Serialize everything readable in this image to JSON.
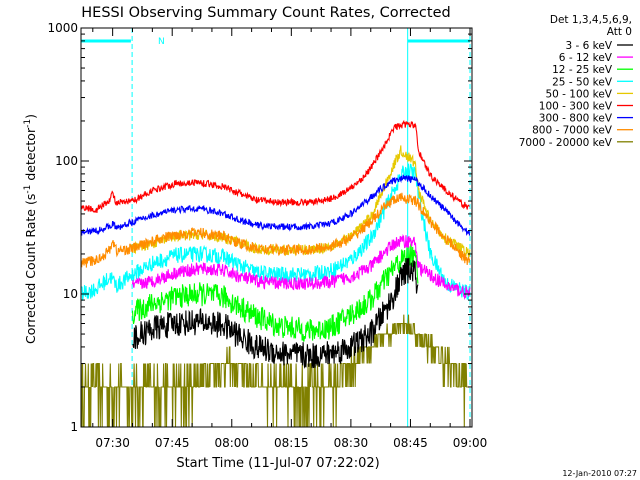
{
  "chart_data": {
    "type": "line",
    "title": "HESSI Observing Summary Count Rates, Corrected",
    "xlabel": "Start Time (11-Jul-07 07:22:02)",
    "ylabel_main": "Corrected Count Rate (s",
    "ylabel_sup1": "-1",
    "ylabel_mid": " detector",
    "ylabel_sup2": "-1",
    "ylabel_end": ")",
    "y_scale": "log",
    "ylim": [
      1,
      1000
    ],
    "xlim_minutes": [
      442.03,
      540.5
    ],
    "x_ticks": [
      {
        "label": "07:30",
        "min": 450
      },
      {
        "label": "07:45",
        "min": 465
      },
      {
        "label": "08:00",
        "min": 480
      },
      {
        "label": "08:15",
        "min": 495
      },
      {
        "label": "08:30",
        "min": 510
      },
      {
        "label": "08:45",
        "min": 525
      },
      {
        "label": "09:00",
        "min": 540
      }
    ],
    "y_ticks": [
      {
        "label": "1",
        "value": 1
      },
      {
        "label": "10",
        "value": 10
      },
      {
        "label": "100",
        "value": 100
      },
      {
        "label": "1000",
        "value": 1000
      }
    ],
    "legend_header": [
      "Det 1,3,4,5,6,9,",
      "Att 0"
    ],
    "series": [
      {
        "name": "3 - 6 keV",
        "color": "#000000",
        "noise": 0.1,
        "points": [
          [
            455.0,
            4.6
          ],
          [
            460,
            5.5
          ],
          [
            466,
            6.0
          ],
          [
            472,
            6.2
          ],
          [
            478,
            5.8
          ],
          [
            482,
            4.8
          ],
          [
            486,
            4.0
          ],
          [
            492,
            3.6
          ],
          [
            500,
            3.4
          ],
          [
            505,
            3.6
          ],
          [
            510,
            4.0
          ],
          [
            515,
            5.0
          ],
          [
            518,
            7.0
          ],
          [
            521,
            10
          ],
          [
            522.5,
            13
          ],
          [
            524,
            15
          ],
          [
            526,
            15
          ],
          [
            527,
            10
          ]
        ]
      },
      {
        "name": "6 - 12 keV",
        "color": "#ff00ff",
        "noise": 0.05,
        "points": [
          [
            455.0,
            11.5
          ],
          [
            460,
            12.5
          ],
          [
            466,
            14.5
          ],
          [
            472,
            15.5
          ],
          [
            478,
            15.0
          ],
          [
            482,
            13.5
          ],
          [
            486,
            12.5
          ],
          [
            492,
            12.0
          ],
          [
            500,
            12.0
          ],
          [
            505,
            12.3
          ],
          [
            510,
            13.5
          ],
          [
            515,
            16.0
          ],
          [
            518,
            20.0
          ],
          [
            521,
            24.0
          ],
          [
            523,
            25.0
          ],
          [
            525,
            25.0
          ],
          [
            526.3,
            24.0
          ],
          [
            527,
            16.0
          ],
          [
            534,
            11.5
          ],
          [
            540,
            10.0
          ]
        ]
      },
      {
        "name": "12 - 25 keV",
        "color": "#00ff00",
        "noise": 0.09,
        "points": [
          [
            455.0,
            7.2
          ],
          [
            460,
            8.5
          ],
          [
            466,
            9.5
          ],
          [
            472,
            10.0
          ],
          [
            478,
            9.5
          ],
          [
            482,
            8.0
          ],
          [
            486,
            6.8
          ],
          [
            492,
            5.7
          ],
          [
            500,
            5.3
          ],
          [
            505,
            5.6
          ],
          [
            510,
            7.0
          ],
          [
            515,
            9.0
          ],
          [
            518,
            12.0
          ],
          [
            521,
            16.0
          ],
          [
            523,
            18.0
          ],
          [
            525,
            20.0
          ],
          [
            526.3,
            18.0
          ],
          [
            527,
            14.0
          ]
        ]
      },
      {
        "name": "25 - 50 keV",
        "color": "#00ffff",
        "noise": 0.06,
        "points": [
          [
            442.2,
            10.0
          ],
          [
            446,
            11.0
          ],
          [
            449.5,
            13.5
          ],
          [
            451,
            11.5
          ],
          [
            455,
            14.0
          ],
          [
            460,
            17.0
          ],
          [
            466,
            19.5
          ],
          [
            472,
            20.0
          ],
          [
            478,
            19.0
          ],
          [
            482,
            16.5
          ],
          [
            486,
            14.5
          ],
          [
            492,
            14.0
          ],
          [
            500,
            14.0
          ],
          [
            505,
            15.0
          ],
          [
            510,
            18.0
          ],
          [
            515,
            26.0
          ],
          [
            518,
            40.0
          ],
          [
            521,
            62.0
          ],
          [
            523,
            80.0
          ],
          [
            524.5,
            85.0
          ],
          [
            526.3,
            80.0
          ],
          [
            527,
            55.0
          ],
          [
            530,
            20.0
          ],
          [
            534,
            12.0
          ],
          [
            537,
            11.0
          ],
          [
            540,
            10.0
          ]
        ]
      },
      {
        "name": "50 - 100 keV",
        "color": "#e6c800",
        "noise": 0.04,
        "points": [
          [
            455.0,
            22.0
          ],
          [
            460,
            24.0
          ],
          [
            466,
            27.0
          ],
          [
            472,
            28.0
          ],
          [
            478,
            26.5
          ],
          [
            482,
            24.0
          ],
          [
            486,
            22.0
          ],
          [
            492,
            21.5
          ],
          [
            500,
            21.5
          ],
          [
            505,
            23.0
          ],
          [
            510,
            27.0
          ],
          [
            515,
            38.0
          ],
          [
            518,
            60.0
          ],
          [
            521,
            95.0
          ],
          [
            522.5,
            120.0
          ],
          [
            524,
            110.0
          ],
          [
            526.3,
            95.0
          ],
          [
            527,
            60.0
          ],
          [
            530,
            35.0
          ],
          [
            534,
            26.0
          ],
          [
            540,
            20.0
          ]
        ]
      },
      {
        "name": "100 - 300 keV",
        "color": "#ff0000",
        "noise": 0.025,
        "points": [
          [
            442.2,
            45.0
          ],
          [
            446,
            43.0
          ],
          [
            449,
            50.0
          ],
          [
            450,
            57.0
          ],
          [
            451,
            48.0
          ],
          [
            455,
            50.0
          ],
          [
            460,
            60.0
          ],
          [
            466,
            68.0
          ],
          [
            472,
            69.0
          ],
          [
            478,
            64.0
          ],
          [
            482,
            57.0
          ],
          [
            486,
            51.0
          ],
          [
            492,
            49.0
          ],
          [
            500,
            49.0
          ],
          [
            505,
            52.0
          ],
          [
            510,
            62.0
          ],
          [
            514,
            80.0
          ],
          [
            517,
            110.0
          ],
          [
            519.5,
            150.0
          ],
          [
            521,
            180.0
          ],
          [
            524,
            190.0
          ],
          [
            526.3,
            185.0
          ],
          [
            527,
            120.0
          ],
          [
            530,
            78.0
          ],
          [
            534,
            60.0
          ],
          [
            537,
            50.0
          ],
          [
            540,
            44.0
          ]
        ]
      },
      {
        "name": "300 - 800 keV",
        "color": "#0000ff",
        "noise": 0.025,
        "points": [
          [
            442.2,
            29.0
          ],
          [
            446,
            30.0
          ],
          [
            449,
            32.0
          ],
          [
            450,
            34.0
          ],
          [
            451,
            31.0
          ],
          [
            455,
            35.0
          ],
          [
            460,
            39.0
          ],
          [
            466,
            43.0
          ],
          [
            472,
            44.0
          ],
          [
            478,
            40.0
          ],
          [
            482,
            36.0
          ],
          [
            486,
            33.0
          ],
          [
            492,
            32.0
          ],
          [
            500,
            32.0
          ],
          [
            505,
            34.0
          ],
          [
            510,
            40.0
          ],
          [
            514,
            50.0
          ],
          [
            517,
            60.0
          ],
          [
            520,
            70.0
          ],
          [
            523,
            75.0
          ],
          [
            526.3,
            72.0
          ],
          [
            530,
            55.0
          ],
          [
            534,
            42.0
          ],
          [
            537,
            34.0
          ],
          [
            540,
            28.0
          ]
        ]
      },
      {
        "name": "800 - 7000 keV",
        "color": "#ff8c00",
        "noise": 0.04,
        "points": [
          [
            442.2,
            17.0
          ],
          [
            446,
            18.0
          ],
          [
            449,
            21.0
          ],
          [
            450,
            25.0
          ],
          [
            451,
            21.0
          ],
          [
            455,
            22.0
          ],
          [
            460,
            25.0
          ],
          [
            466,
            28.0
          ],
          [
            472,
            29.0
          ],
          [
            478,
            27.0
          ],
          [
            482,
            24.0
          ],
          [
            486,
            22.0
          ],
          [
            492,
            21.5
          ],
          [
            500,
            21.5
          ],
          [
            505,
            23.0
          ],
          [
            510,
            26.0
          ],
          [
            514,
            33.0
          ],
          [
            517,
            40.0
          ],
          [
            520,
            50.0
          ],
          [
            523,
            53.0
          ],
          [
            526.3,
            50.0
          ],
          [
            530,
            35.0
          ],
          [
            534,
            26.0
          ],
          [
            540,
            17.0
          ]
        ]
      },
      {
        "name": "7000 - 20000 keV",
        "color": "#808000",
        "noise": 0.0,
        "points": [
          [
            442.2,
            2.0
          ],
          [
            454.5,
            2.0
          ],
          [
            455,
            2.0
          ],
          [
            470,
            2.0
          ],
          [
            472,
            2.5
          ],
          [
            478,
            3.0
          ],
          [
            484,
            2.5
          ],
          [
            492,
            2.0
          ],
          [
            500,
            2.0
          ],
          [
            506,
            2.0
          ],
          [
            508,
            2.5
          ],
          [
            511,
            3.0
          ],
          [
            514,
            3.5
          ],
          [
            517,
            4.5
          ],
          [
            520,
            5.0
          ],
          [
            522,
            6.0
          ],
          [
            524,
            6.0
          ],
          [
            526.3,
            5.0
          ],
          [
            530,
            4.0
          ],
          [
            534,
            3.0
          ],
          [
            540,
            2.0
          ]
        ]
      }
    ],
    "vertical_markers_min": [
      454.9,
      524.3,
      540.0
    ],
    "attenuator_bars": [
      [
        442.03,
        454.6
      ],
      [
        524.3,
        540.0
      ]
    ],
    "attenuator_bar_color": "#00ffff",
    "attenuator_label": "N",
    "timestamp": "12-Jan-2010 07:27"
  }
}
